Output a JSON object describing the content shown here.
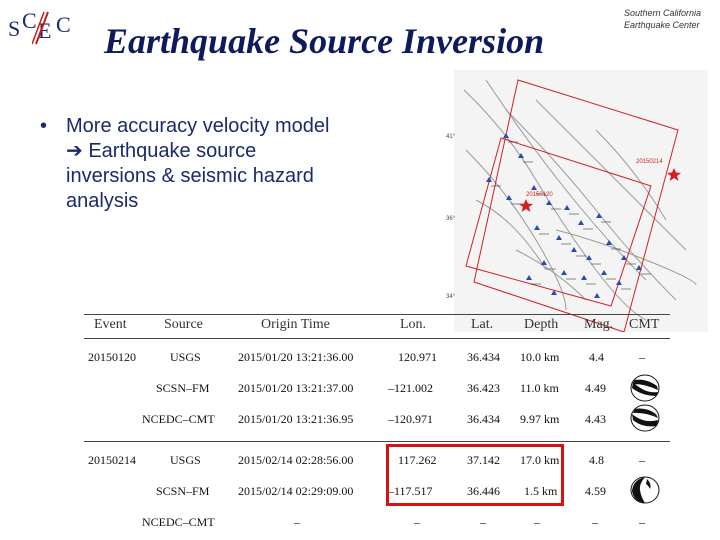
{
  "logo": {
    "s": "S",
    "c1": "C",
    "e": "E",
    "c2": "C"
  },
  "title": "Earthquake Source Inversion",
  "org": {
    "line1": "Southern California",
    "line2": "Earthquake Center"
  },
  "bullet": {
    "mark": "•",
    "line1": "More accuracy velocity model",
    "arrow": "➔",
    "line2": "Earthquake source",
    "line3": "inversions & seismic hazard",
    "line4": "analysis"
  },
  "map": {
    "event1": "20150214",
    "event2": "20150120",
    "lat_labels": [
      "41°",
      "36°",
      "34°"
    ]
  },
  "table": {
    "headers": [
      "Event",
      "Source",
      "Origin Time",
      "Lon.",
      "Lat.",
      "Depth",
      "Mag.",
      "CMT"
    ],
    "rows": [
      {
        "event": "20150120",
        "source": "USGS",
        "time": "2015/01/20 13:21:36.00",
        "lon": "120.971",
        "lat": "36.434",
        "depth": "10.0 km",
        "mag": "4.4",
        "cmt": "–"
      },
      {
        "event": "",
        "source": "SCSN–FM",
        "time": "2015/01/20 13:21:37.00",
        "lon": "–121.002",
        "lat": "36.423",
        "depth": "11.0 km",
        "mag": "4.49",
        "cmt": ""
      },
      {
        "event": "",
        "source": "NCEDC–CMT",
        "time": "2015/01/20 13:21:36.95",
        "lon": "–120.971",
        "lat": "36.434",
        "depth": "9.97 km",
        "mag": "4.43",
        "cmt": ""
      },
      {
        "event": "20150214",
        "source": "USGS",
        "time": "2015/02/14 02:28:56.00",
        "lon": "117.262",
        "lat": "37.142",
        "depth": "17.0 km",
        "mag": "4.8",
        "cmt": "–"
      },
      {
        "event": "",
        "source": "SCSN–FM",
        "time": "2015/02/14 02:29:09.00",
        "lon": "–117.517",
        "lat": "36.446",
        "depth": "1.5 km",
        "mag": "4.59",
        "cmt": ""
      },
      {
        "event": "",
        "source": "NCEDC–CMT",
        "time": "–",
        "lon": "–",
        "lat": "–",
        "depth": "–",
        "mag": "–",
        "cmt": "–"
      }
    ]
  },
  "colors": {
    "title": "#0d1a5c",
    "highlight": "#d31212",
    "map_frame": "#d32020"
  }
}
